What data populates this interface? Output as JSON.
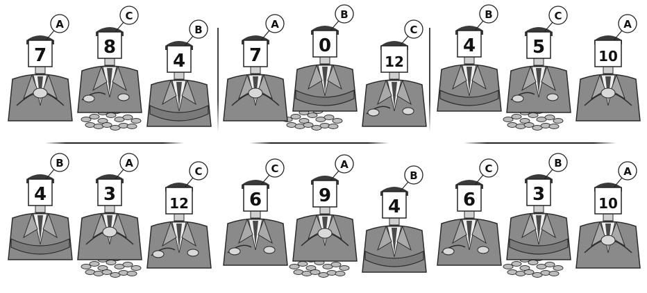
{
  "panels": [
    {
      "people": [
        {
          "letter": "A",
          "number": "7",
          "pose": "phone"
        },
        {
          "letter": "C",
          "number": "8",
          "pose": "coins"
        },
        {
          "letter": "B",
          "number": "4",
          "pose": "crossed"
        }
      ],
      "coins": true
    },
    {
      "people": [
        {
          "letter": "A",
          "number": "7",
          "pose": "phone"
        },
        {
          "letter": "B",
          "number": "0",
          "pose": "crossed"
        },
        {
          "letter": "C",
          "number": "12",
          "pose": "coins"
        }
      ],
      "coins": true
    },
    {
      "people": [
        {
          "letter": "B",
          "number": "4",
          "pose": "crossed"
        },
        {
          "letter": "C",
          "number": "5",
          "pose": "coins"
        },
        {
          "letter": "A",
          "number": "10",
          "pose": "phone"
        }
      ],
      "coins": true
    },
    {
      "people": [
        {
          "letter": "B",
          "number": "4",
          "pose": "crossed"
        },
        {
          "letter": "A",
          "number": "3",
          "pose": "phone"
        },
        {
          "letter": "C",
          "number": "12",
          "pose": "coins"
        }
      ],
      "coins": true
    },
    {
      "people": [
        {
          "letter": "C",
          "number": "6",
          "pose": "coins"
        },
        {
          "letter": "A",
          "number": "9",
          "pose": "phone"
        },
        {
          "letter": "B",
          "number": "4",
          "pose": "crossed"
        }
      ],
      "coins": true
    },
    {
      "people": [
        {
          "letter": "C",
          "number": "6",
          "pose": "coins"
        },
        {
          "letter": "B",
          "number": "3",
          "pose": "crossed"
        },
        {
          "letter": "A",
          "number": "10",
          "pose": "phone"
        }
      ],
      "coins": true
    }
  ]
}
